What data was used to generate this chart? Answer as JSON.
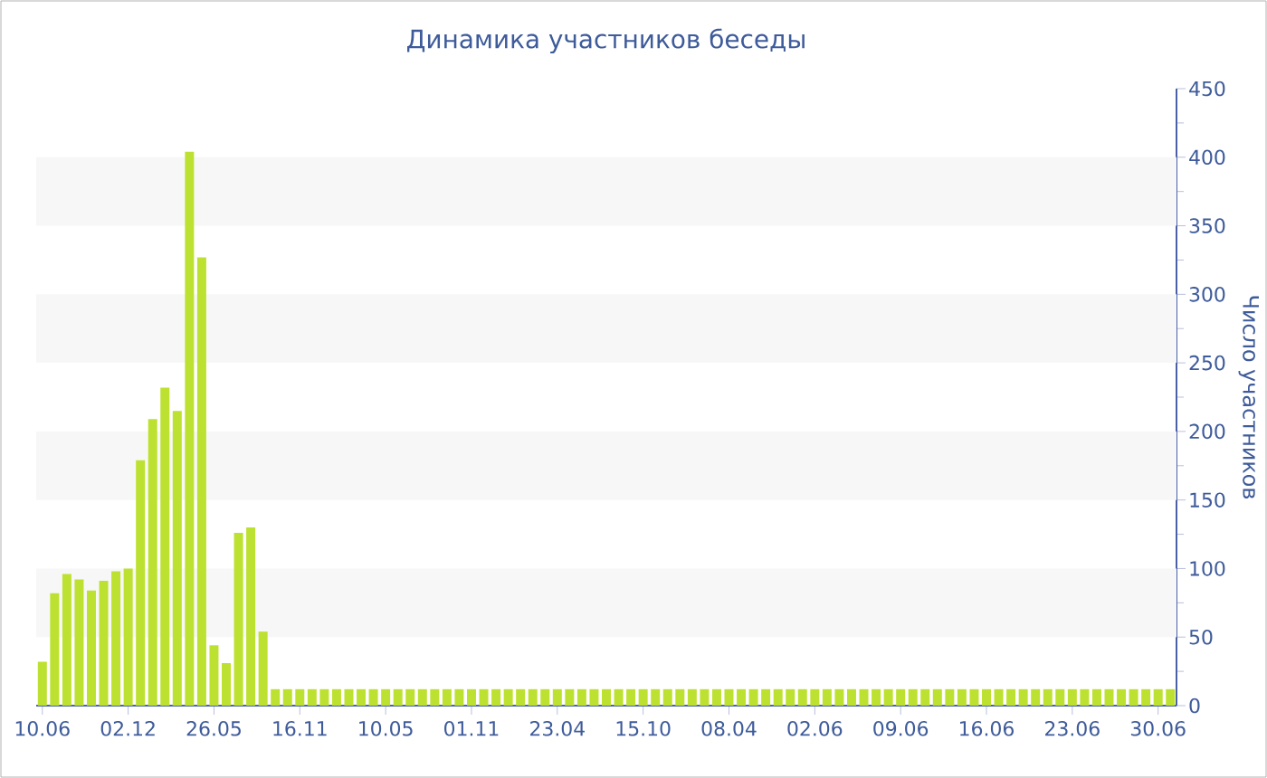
{
  "chart_data": {
    "type": "bar",
    "title": "Динамика участников беседы",
    "ylabel": "Число участников",
    "categories": [
      "10.06",
      null,
      null,
      null,
      null,
      null,
      null,
      "02.12",
      null,
      null,
      null,
      null,
      null,
      null,
      "26.05",
      null,
      null,
      null,
      null,
      null,
      null,
      "16.11",
      null,
      null,
      null,
      null,
      null,
      null,
      "10.05",
      null,
      null,
      null,
      null,
      null,
      null,
      "01.11",
      null,
      null,
      null,
      null,
      null,
      null,
      "23.04",
      null,
      null,
      null,
      null,
      null,
      null,
      "15.10",
      null,
      null,
      null,
      null,
      null,
      null,
      "08.04",
      null,
      null,
      null,
      null,
      null,
      null,
      "02.06",
      null,
      null,
      null,
      null,
      null,
      null,
      "09.06",
      null,
      null,
      null,
      null,
      null,
      null,
      "16.06",
      null,
      null,
      null,
      null,
      null,
      null,
      "23.06",
      null,
      null,
      null,
      null,
      null,
      null,
      "30.06",
      null
    ],
    "values": [
      32,
      82,
      96,
      92,
      84,
      91,
      98,
      100,
      179,
      209,
      232,
      215,
      404,
      327,
      44,
      31,
      126,
      130,
      54,
      12,
      12,
      12,
      12,
      12,
      12,
      12,
      12,
      12,
      12,
      12,
      12,
      12,
      12,
      12,
      12,
      12,
      12,
      12,
      12,
      12,
      12,
      12,
      12,
      12,
      12,
      12,
      12,
      12,
      12,
      12,
      12,
      12,
      12,
      12,
      12,
      12,
      12,
      12,
      12,
      12,
      12,
      12,
      12,
      12,
      12,
      12,
      12,
      12,
      12,
      12,
      12,
      12,
      12,
      12,
      12,
      12,
      12,
      12,
      12,
      12,
      12,
      12,
      12,
      12,
      12,
      12,
      12,
      12,
      12,
      12,
      12,
      12,
      12
    ],
    "color": "#bde130",
    "ylim": [
      0,
      450
    ],
    "yticks": [
      0,
      50,
      100,
      150,
      200,
      250,
      300,
      350,
      400,
      450
    ],
    "bands": [
      {
        "axis": "y",
        "from": 50,
        "to": 100,
        "color": "#f7f7f7"
      },
      {
        "axis": "y",
        "from": 150,
        "to": 200,
        "color": "#f7f7f7"
      },
      {
        "axis": "y",
        "from": 250,
        "to": 300,
        "color": "#f7f7f7"
      },
      {
        "axis": "y",
        "from": 350,
        "to": 400,
        "color": "#f7f7f7"
      }
    ]
  }
}
